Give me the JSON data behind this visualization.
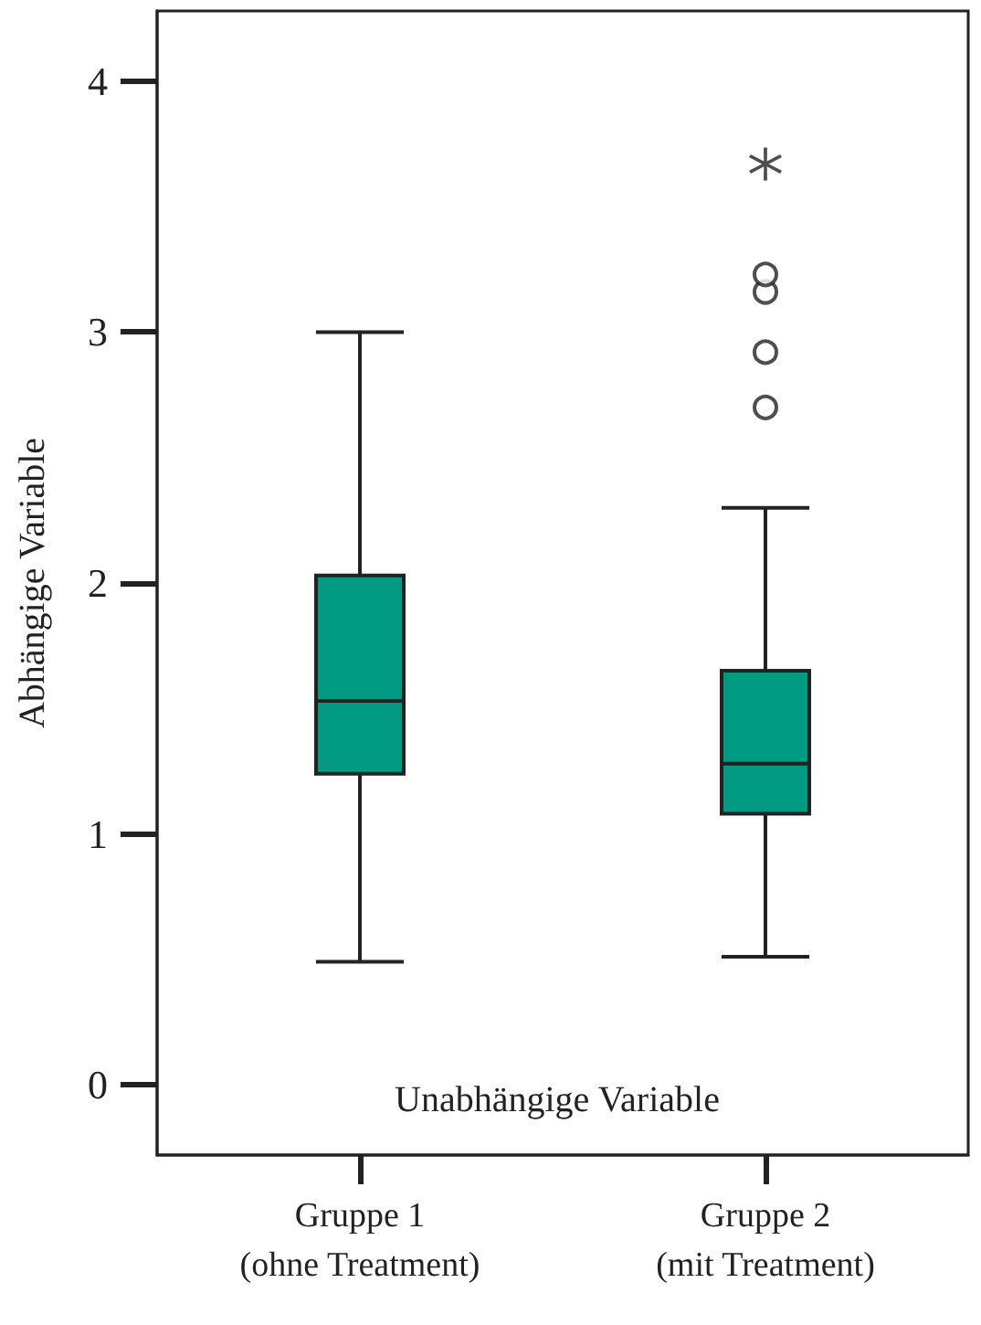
{
  "chart_data": {
    "type": "box",
    "xlabel": "Unabhängige Variable",
    "ylabel": "Abhängige Variable",
    "categories": [
      "Gruppe 1\n(ohne Treatment)",
      "Gruppe 2\n(mit Treatment)"
    ],
    "ylim": [
      -0.28,
      4.28
    ],
    "yticks": [
      0,
      1,
      2,
      3,
      4
    ],
    "grid": false,
    "series": [
      {
        "color": "#009982",
        "boxes": [
          {
            "low": 0.49,
            "q1": 1.24,
            "median": 1.53,
            "q3": 2.03,
            "high": 3.0
          },
          {
            "low": 0.51,
            "q1": 1.08,
            "median": 1.28,
            "q3": 1.65,
            "high": 2.3,
            "outliers": [
              2.7,
              2.92,
              3.16,
              3.23
            ]
          }
        ]
      },
      {
        "type": "scatter",
        "color": "#222222",
        "marker": "star",
        "x": [
          "Gruppe 2\n(mit Treatment)"
        ],
        "values": [
          3.67
        ]
      }
    ]
  }
}
